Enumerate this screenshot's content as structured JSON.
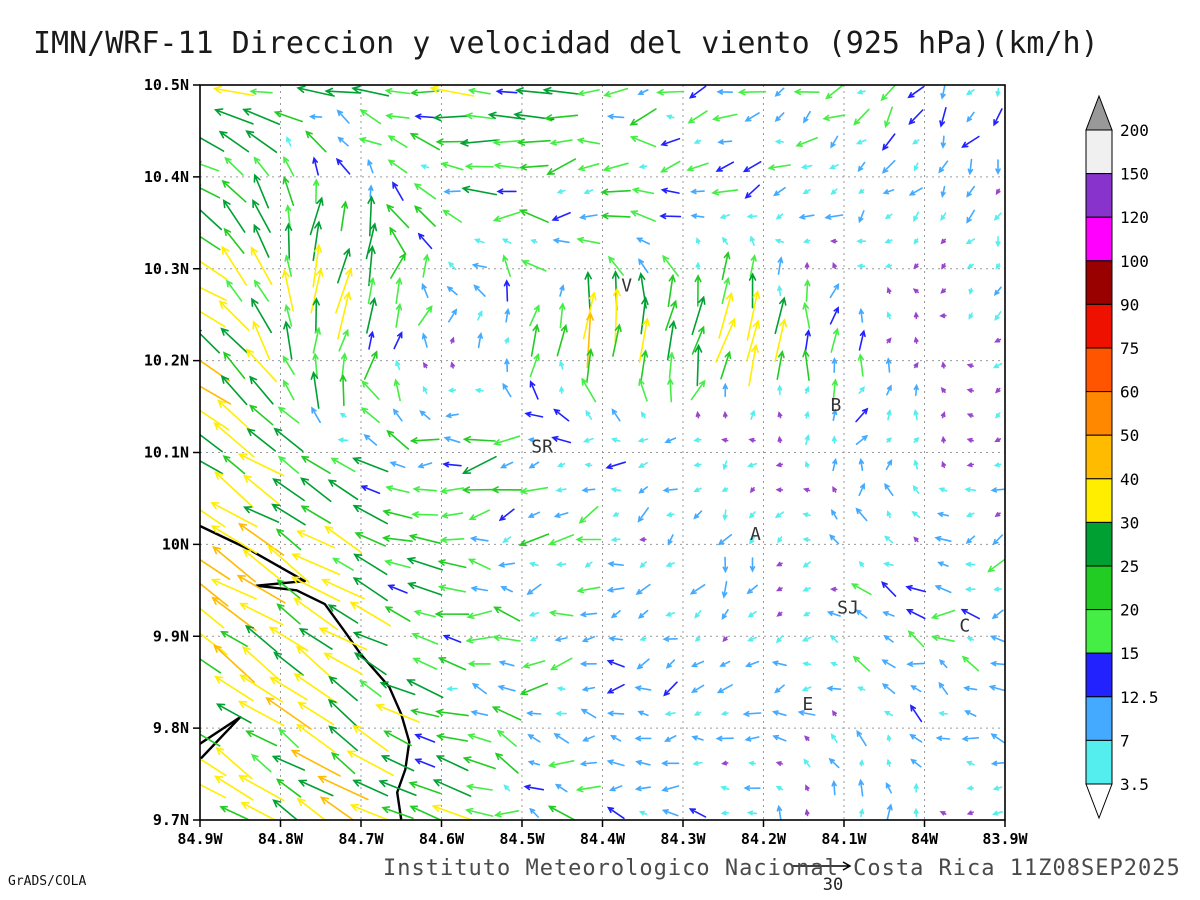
{
  "title": "IMN/WRF-11 Direccion y velocidad del viento (925 hPa)(km/h)",
  "footer": {
    "institute": "Instituto Meteorologico Nacional Costa Rica 11Z08SEP2025",
    "credit": "GrADS/COLA"
  },
  "chart_data": {
    "type": "quiver",
    "title": "IMN/WRF-11 Direccion y velocidad del viento (925 hPa)(km/h)",
    "variable": "wind direction and speed",
    "level": "925 hPa",
    "units": "km/h",
    "valid_time": "11Z08SEP2025",
    "grid": true,
    "x_axis": {
      "range": [
        -84.9,
        -83.9
      ],
      "ticks": [
        "84.9W",
        "84.8W",
        "84.7W",
        "84.6W",
        "84.5W",
        "84.4W",
        "84.3W",
        "84.2W",
        "84.1W",
        "84W",
        "83.9W"
      ]
    },
    "y_axis": {
      "range": [
        9.7,
        10.5
      ],
      "ticks": [
        "10.5N",
        "10.4N",
        "10.3N",
        "10.2N",
        "10.1N",
        "10N",
        "9.9N",
        "9.8N",
        "9.7N"
      ]
    },
    "colorbar": {
      "levels": [
        3.5,
        7,
        12.5,
        15,
        20,
        25,
        30,
        40,
        50,
        60,
        75,
        90,
        100,
        120,
        150,
        200
      ],
      "colors": [
        "#ffffff",
        "#55eeee",
        "#44aaff",
        "#2222ff",
        "#44ee44",
        "#22cc22",
        "#00a033",
        "#ffee00",
        "#ffbb00",
        "#ff8800",
        "#ff5500",
        "#ee1100",
        "#990000",
        "#ff00ff",
        "#8833cc",
        "#f0f0f0",
        "#999999"
      ]
    },
    "reference_vector": 30,
    "stations": [
      {
        "label": "V",
        "lon": -84.37,
        "lat": 10.275
      },
      {
        "label": "B",
        "lon": -84.11,
        "lat": 10.145
      },
      {
        "label": "SR",
        "lon": -84.475,
        "lat": 10.1
      },
      {
        "label": "A",
        "lon": -84.21,
        "lat": 10.005
      },
      {
        "label": "SJ",
        "lon": -84.095,
        "lat": 9.925
      },
      {
        "label": "C",
        "lon": -83.95,
        "lat": 9.905
      },
      {
        "label": "E",
        "lon": -84.145,
        "lat": 9.82
      }
    ],
    "coastline": [
      [
        [
          -84.9,
          10.02
        ],
        [
          -84.84,
          9.995
        ],
        [
          -84.8,
          9.975
        ],
        [
          -84.77,
          9.96
        ],
        [
          -84.83,
          9.955
        ],
        [
          -84.78,
          9.95
        ],
        [
          -84.745,
          9.935
        ],
        [
          -84.72,
          9.905
        ],
        [
          -84.7,
          9.88
        ],
        [
          -84.665,
          9.845
        ],
        [
          -84.65,
          9.815
        ],
        [
          -84.64,
          9.785
        ],
        [
          -84.645,
          9.755
        ],
        [
          -84.655,
          9.73
        ],
        [
          -84.65,
          9.7
        ]
      ],
      [
        [
          -84.9,
          9.783
        ],
        [
          -84.85,
          9.812
        ],
        [
          -84.9,
          9.766
        ]
      ]
    ],
    "wind_field": {
      "description": "coarse estimate of u,v (km/h, eastward/northward) sampled from the plotted vectors; rows top(10.5N) to bottom(9.7N), cols west(-84.9) to east(-83.9)",
      "lats": [
        10.5,
        10.3667,
        10.2333,
        10.1,
        9.9667,
        9.8333,
        9.7
      ],
      "lons": [
        -84.9,
        -84.7333,
        -84.5667,
        -84.4,
        -84.2333,
        -84.0667,
        -83.9
      ],
      "uv": [
        [
          [
            -25,
            5
          ],
          [
            -25,
            2
          ],
          [
            -24,
            0
          ],
          [
            -20,
            -1
          ],
          [
            -14,
            -4
          ],
          [
            -10,
            -9
          ],
          [
            -4,
            -12
          ]
        ],
        [
          [
            -24,
            14
          ],
          [
            8,
            30
          ],
          [
            -22,
            2
          ],
          [
            -18,
            0
          ],
          [
            -12,
            -5
          ],
          [
            -8,
            -8
          ],
          [
            -3,
            -7
          ]
        ],
        [
          [
            -28,
            18
          ],
          [
            10,
            26
          ],
          [
            3,
            6
          ],
          [
            6,
            38
          ],
          [
            12,
            36
          ],
          [
            2,
            10
          ],
          [
            -4,
            -5
          ]
        ],
        [
          [
            -30,
            20
          ],
          [
            -18,
            10
          ],
          [
            -20,
            -4
          ],
          [
            -12,
            -2
          ],
          [
            -6,
            -6
          ],
          [
            6,
            12
          ],
          [
            -5,
            -3
          ]
        ],
        [
          [
            -30,
            20
          ],
          [
            -24,
            14
          ],
          [
            -20,
            0
          ],
          [
            -12,
            -5
          ],
          [
            -2,
            -9
          ],
          [
            -14,
            6
          ],
          [
            -14,
            -7
          ]
        ],
        [
          [
            -24,
            16
          ],
          [
            -26,
            18
          ],
          [
            -18,
            3
          ],
          [
            -12,
            0
          ],
          [
            -8,
            -6
          ],
          [
            -10,
            8
          ],
          [
            -12,
            5
          ]
        ],
        [
          [
            -20,
            12
          ],
          [
            -28,
            18
          ],
          [
            -20,
            8
          ],
          [
            -12,
            2
          ],
          [
            -10,
            5
          ],
          [
            6,
            10
          ],
          [
            -8,
            -4
          ]
        ]
      ]
    }
  }
}
